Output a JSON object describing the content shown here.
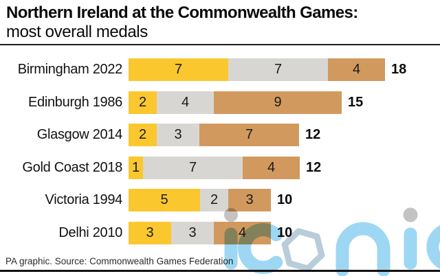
{
  "title": {
    "line1": "Northern Ireland at the Commonwealth Games:",
    "line2": "most overall medals"
  },
  "footer": {
    "source": "PA graphic. Source: Commonwealth Games Federation"
  },
  "watermark": {
    "text": "iconic",
    "letter_color": "#9ed7f3",
    "dot_color": "#c3c3c3",
    "hexagon_color": "#b9ccd9"
  },
  "chart_data": {
    "type": "bar",
    "orientation": "horizontal",
    "stacked": true,
    "grid": false,
    "legend": "none",
    "categories": [
      "Birmingham 2022",
      "Edinburgh 1986",
      "Glasgow 2014",
      "Gold Coast 2018",
      "Victoria 1994",
      "Delhi 2010"
    ],
    "series": [
      {
        "name": "gold",
        "color": "#fac72f",
        "values": [
          7,
          2,
          2,
          1,
          5,
          3
        ]
      },
      {
        "name": "silver",
        "color": "#d8d6d2",
        "values": [
          7,
          4,
          3,
          7,
          2,
          3
        ]
      },
      {
        "name": "bronze",
        "color": "#d2995e",
        "values": [
          4,
          9,
          7,
          4,
          3,
          4
        ]
      }
    ],
    "totals": [
      18,
      15,
      12,
      12,
      10,
      10
    ],
    "x_max": 18,
    "value_labels": "centered inside each segment",
    "total_labels": "bold, right of bar end"
  }
}
